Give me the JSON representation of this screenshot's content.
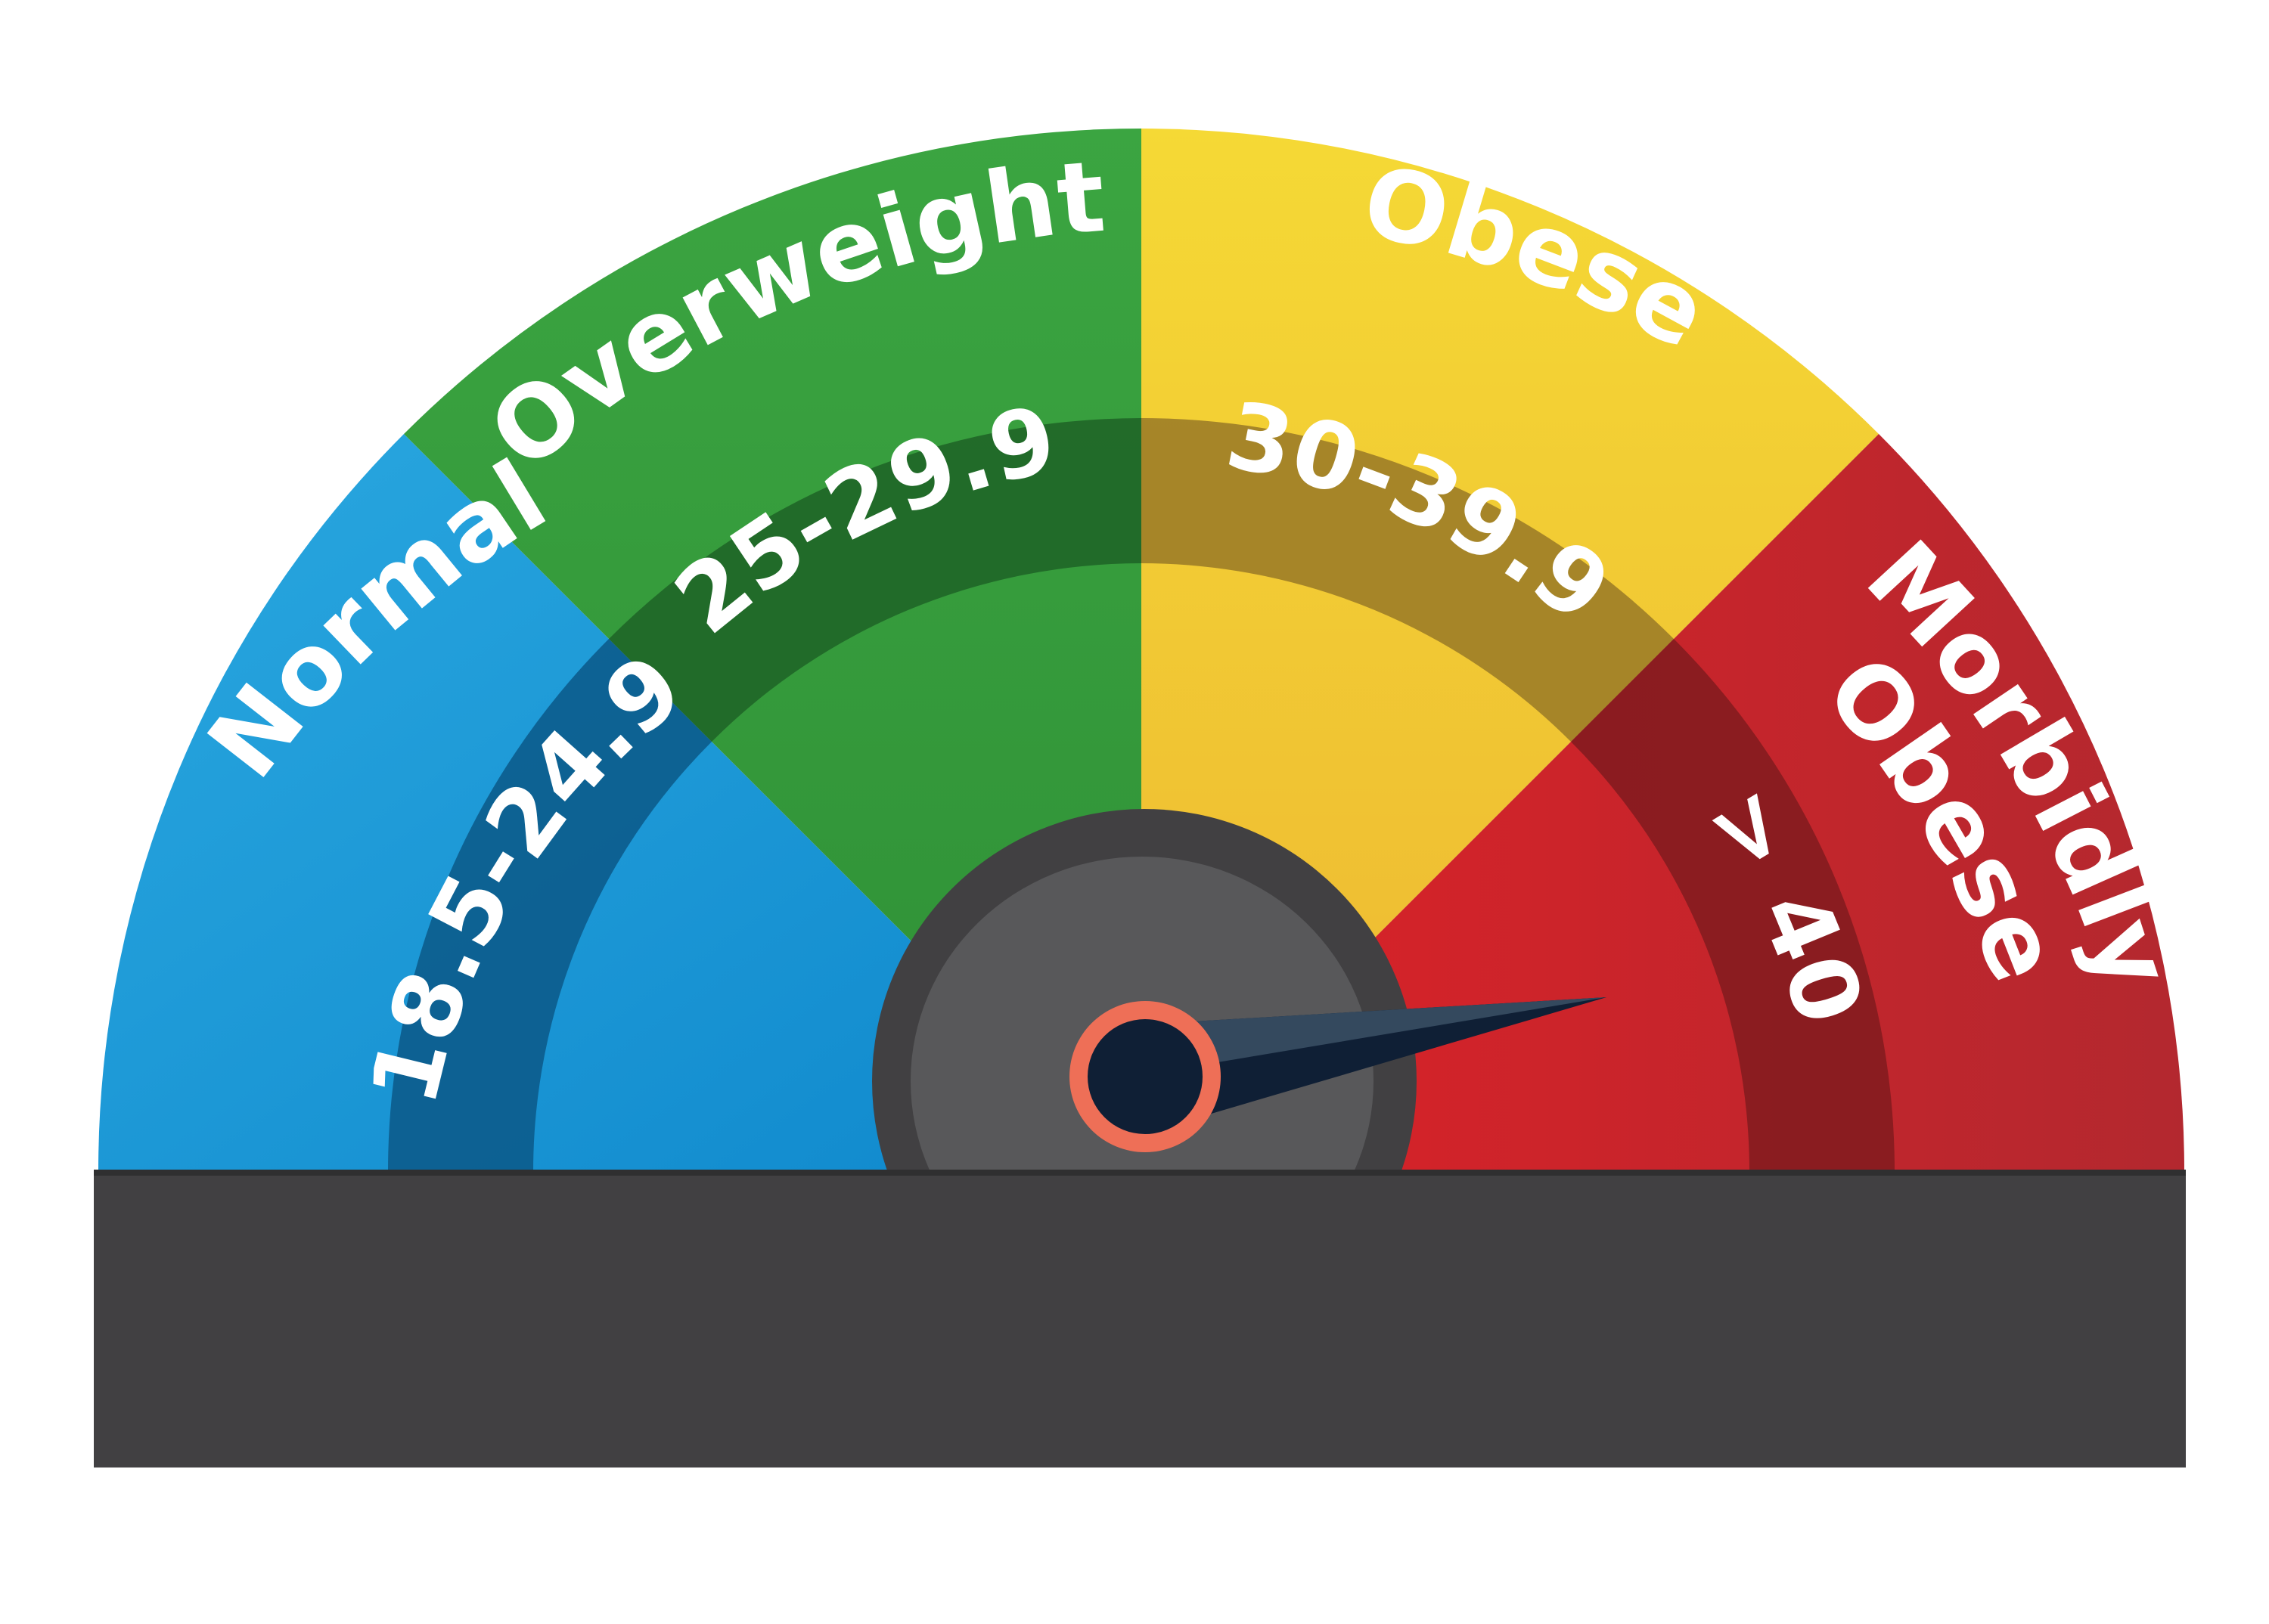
{
  "gauge": {
    "segments": [
      {
        "key": "normal",
        "category": "Normal",
        "range": "18.5-24.9",
        "color": "#1e9ad6",
        "band_color": "#0b5a8a"
      },
      {
        "key": "overweight",
        "category": "Overweight",
        "range": "25-29.9",
        "color": "#3a9e3e",
        "band_color": "#22692a"
      },
      {
        "key": "obese",
        "category": "Obese",
        "range": "30-39.9",
        "color": "#f1c734",
        "band_color": "#a5852a"
      },
      {
        "key": "morbidly-obese",
        "category_lines": [
          "Morbidly",
          "Obese"
        ],
        "range": "> 40",
        "color": "#c9242b",
        "band_color": "#861b20"
      }
    ],
    "base_color": "#414042",
    "hub_outer_color": "#414042",
    "hub_inner_color": "#58585a",
    "needle_color": "#0f1f35",
    "needle_highlight_color": "#2b4a6a",
    "pivot_ring_color": "#ee6f57",
    "needle_position_fraction": 0.95
  }
}
